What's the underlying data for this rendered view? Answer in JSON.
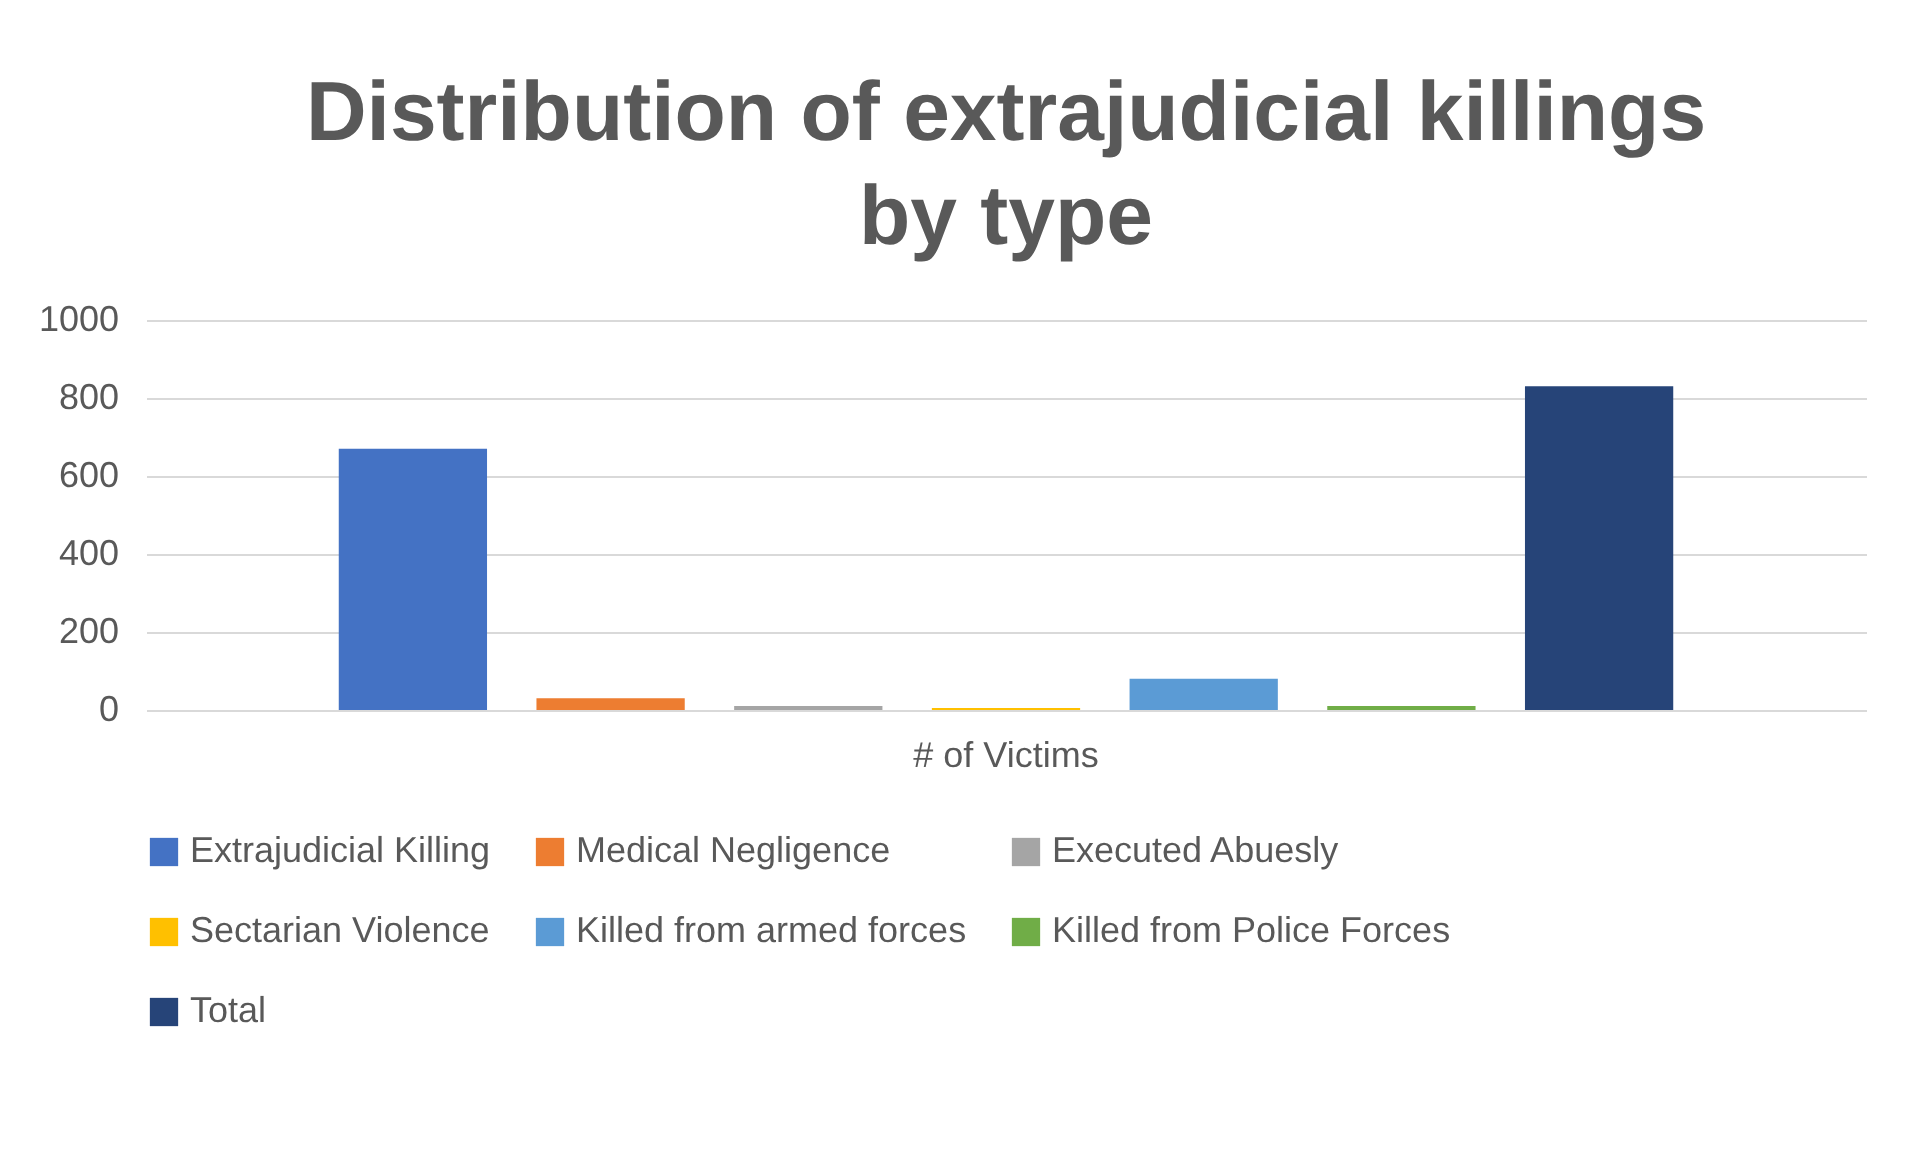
{
  "chart_data": {
    "type": "bar",
    "title": "Distribution of extrajudicial killings by type",
    "categories": [
      "# of Victims"
    ],
    "series": [
      {
        "name": "Extrajudicial Killing",
        "color": "#4472c4",
        "values": [
          670
        ]
      },
      {
        "name": "Medical Negligence",
        "color": "#ed7d31",
        "values": [
          30
        ]
      },
      {
        "name": "Executed Abuesly",
        "color": "#a5a5a5",
        "values": [
          10
        ]
      },
      {
        "name": "Sectarian Violence",
        "color": "#ffc000",
        "values": [
          5
        ]
      },
      {
        "name": "Killed from armed forces",
        "color": "#5b9bd5",
        "values": [
          80
        ]
      },
      {
        "name": "Killed from Police Forces",
        "color": "#70ad47",
        "values": [
          10
        ]
      },
      {
        "name": "Total",
        "color": "#264478",
        "values": [
          830
        ]
      }
    ],
    "ylim": [
      0,
      1000
    ],
    "yticks": [
      0,
      200,
      400,
      600,
      800,
      1000
    ],
    "grid": "y",
    "legend": "bottom"
  }
}
